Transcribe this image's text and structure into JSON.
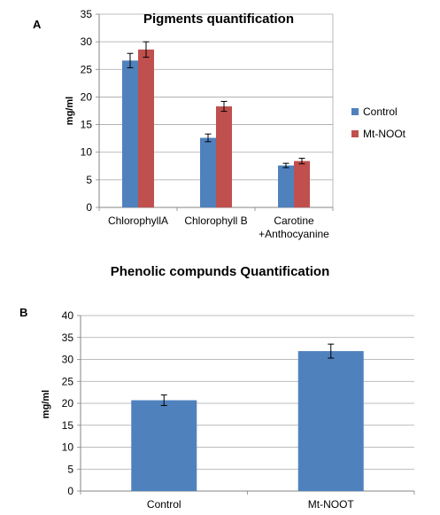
{
  "chart_data": [
    {
      "type": "bar",
      "panel": "A",
      "title": "Pigments quantification",
      "ylabel": "mg/ml",
      "xlabel": "",
      "ylim": [
        0,
        35
      ],
      "yticks": [
        0,
        5,
        10,
        15,
        20,
        25,
        30,
        35
      ],
      "grid": true,
      "legend_position": "right",
      "categories": [
        "ChlorophyllA",
        "Chlorophyll B",
        "Carotine +Anthocyanine"
      ],
      "category_lines": [
        [
          "ChlorophyllA"
        ],
        [
          "Chlorophyll B"
        ],
        [
          "Carotine",
          "+Anthocyanine"
        ]
      ],
      "series": [
        {
          "name": "Control",
          "color": "#4f81bd",
          "values": [
            26.6,
            12.6,
            7.6
          ],
          "errors": [
            1.3,
            0.7,
            0.4
          ]
        },
        {
          "name": "Mt-NOOt",
          "color": "#c0504d",
          "values": [
            28.6,
            18.3,
            8.4
          ],
          "errors": [
            1.4,
            0.9,
            0.5
          ]
        }
      ]
    },
    {
      "type": "bar",
      "panel": "B",
      "title": "Phenolic compunds Quantification",
      "ylabel": "mg/ml",
      "xlabel": "",
      "ylim": [
        0,
        40
      ],
      "yticks": [
        0,
        5,
        10,
        15,
        20,
        25,
        30,
        35,
        40
      ],
      "grid": true,
      "categories": [
        "Control",
        "Mt-NOOT"
      ],
      "series": [
        {
          "color": "#4f81bd",
          "values": [
            20.7,
            31.9
          ],
          "errors": [
            1.2,
            1.6
          ]
        }
      ]
    }
  ]
}
